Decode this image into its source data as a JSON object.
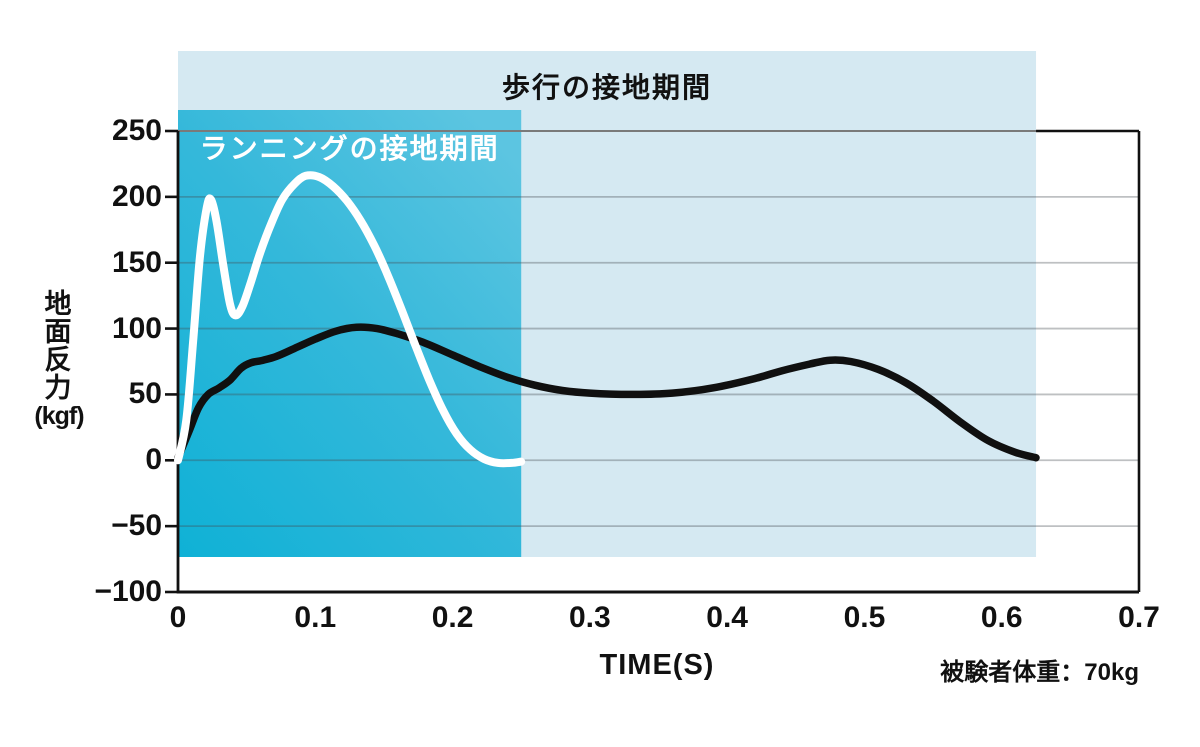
{
  "chart_data": {
    "type": "line",
    "title": "",
    "xlabel": "TIME(S)",
    "ylabel_chars": [
      "地",
      "面",
      "反",
      "力"
    ],
    "ylabel_unit": "(kgf)",
    "xlim": [
      0,
      0.7
    ],
    "ylim": [
      -100,
      250
    ],
    "grid": true,
    "x_ticks": {
      "values": [
        0,
        0.1,
        0.2,
        0.3,
        0.4,
        0.5,
        0.6,
        0.7
      ],
      "labels": [
        "0",
        "0.1",
        "0.2",
        "0.3",
        "0.4",
        "0.5",
        "0.6",
        "0.7"
      ]
    },
    "y_ticks": {
      "values": [
        250,
        200,
        150,
        100,
        50,
        0,
        -50,
        -100
      ],
      "labels": [
        "250",
        "200",
        "150",
        "100",
        "50",
        "0",
        "−50",
        "−100"
      ]
    },
    "annotations": {
      "walking_band": {
        "label": "歩行の接地期間",
        "t_start": 0,
        "t_end": 0.625,
        "color": "#d5e9f2"
      },
      "running_band": {
        "label": "ランニングの接地期間",
        "t_start": 0,
        "t_end": 0.25,
        "color_dark": "#0fb1d6",
        "color_light": "#5cc5e1"
      },
      "note": "被験者体重：70kg"
    },
    "series": [
      {
        "name": "歩行 (walking)",
        "color": "#101010",
        "points": [
          [
            0,
            2
          ],
          [
            0.008,
            22
          ],
          [
            0.015,
            40
          ],
          [
            0.022,
            50
          ],
          [
            0.03,
            55
          ],
          [
            0.038,
            61
          ],
          [
            0.046,
            70
          ],
          [
            0.053,
            74
          ],
          [
            0.062,
            76
          ],
          [
            0.072,
            79
          ],
          [
            0.085,
            85
          ],
          [
            0.1,
            92
          ],
          [
            0.115,
            98
          ],
          [
            0.13,
            101
          ],
          [
            0.145,
            100
          ],
          [
            0.16,
            96
          ],
          [
            0.18,
            89
          ],
          [
            0.2,
            80
          ],
          [
            0.22,
            71
          ],
          [
            0.24,
            63
          ],
          [
            0.26,
            57
          ],
          [
            0.28,
            53
          ],
          [
            0.3,
            51
          ],
          [
            0.33,
            50
          ],
          [
            0.36,
            51
          ],
          [
            0.39,
            55
          ],
          [
            0.42,
            62
          ],
          [
            0.44,
            68
          ],
          [
            0.46,
            73
          ],
          [
            0.475,
            76
          ],
          [
            0.49,
            75
          ],
          [
            0.51,
            69
          ],
          [
            0.53,
            59
          ],
          [
            0.55,
            45
          ],
          [
            0.57,
            29
          ],
          [
            0.59,
            15
          ],
          [
            0.61,
            6
          ],
          [
            0.625,
            2
          ]
        ]
      },
      {
        "name": "ランニング (running)",
        "color": "#ffffff",
        "points": [
          [
            0,
            0
          ],
          [
            0.006,
            30
          ],
          [
            0.011,
            90
          ],
          [
            0.016,
            155
          ],
          [
            0.021,
            192
          ],
          [
            0.024,
            198
          ],
          [
            0.028,
            182
          ],
          [
            0.033,
            148
          ],
          [
            0.038,
            118
          ],
          [
            0.042,
            110
          ],
          [
            0.047,
            117
          ],
          [
            0.053,
            135
          ],
          [
            0.06,
            158
          ],
          [
            0.068,
            180
          ],
          [
            0.076,
            198
          ],
          [
            0.085,
            210
          ],
          [
            0.093,
            216
          ],
          [
            0.103,
            215
          ],
          [
            0.113,
            208
          ],
          [
            0.123,
            197
          ],
          [
            0.133,
            182
          ],
          [
            0.143,
            163
          ],
          [
            0.153,
            140
          ],
          [
            0.163,
            114
          ],
          [
            0.173,
            87
          ],
          [
            0.183,
            61
          ],
          [
            0.193,
            38
          ],
          [
            0.203,
            20
          ],
          [
            0.213,
            8
          ],
          [
            0.223,
            1
          ],
          [
            0.233,
            -2
          ],
          [
            0.243,
            -2
          ],
          [
            0.25,
            -1
          ]
        ]
      }
    ]
  }
}
